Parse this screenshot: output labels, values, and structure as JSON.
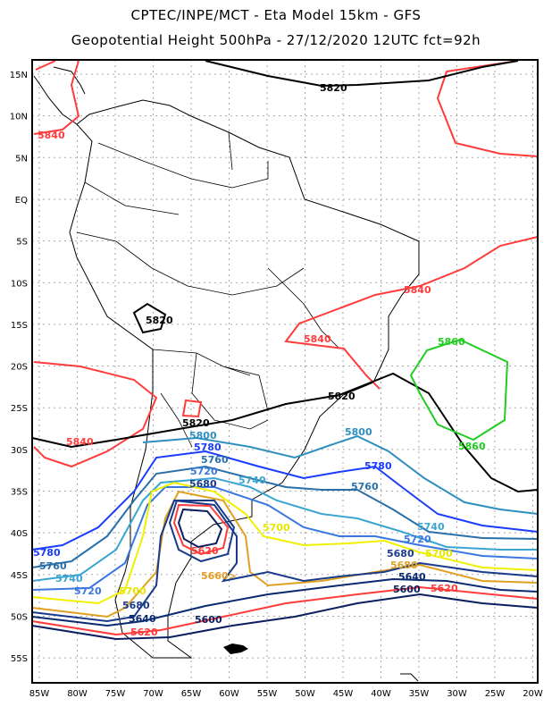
{
  "title_line1": "CPTEC/INPE/MCT -  Eta Model 15km - GFS",
  "title_line2": "Geopotential Height 500hPa - 27/12/2020 12UTC fct=92h",
  "lat_labels": [
    "15N",
    "10N",
    "5N",
    "EQ",
    "5S",
    "10S",
    "15S",
    "20S",
    "25S",
    "30S",
    "35S",
    "40S",
    "45S",
    "50S",
    "55S"
  ],
  "lon_labels": [
    "85W",
    "80W",
    "75W",
    "70W",
    "65W",
    "60W",
    "55W",
    "50W",
    "45W",
    "40W",
    "35W",
    "30W",
    "25W",
    "20W"
  ],
  "contour_colors": {
    "5860": "#22cc22",
    "5840": "#ff3b3b",
    "5820": "#000000",
    "5800": "#2f8fbf",
    "5780": "#1a3cff",
    "5760": "#2a6fa8",
    "5740": "#3aa5d0",
    "5720": "#3a78e0",
    "5700": "#f0f000",
    "5680": "#e0a020",
    "5660": "#1a3a8a",
    "5640": "#0a2a70",
    "5620": "#ff3b3b",
    "5600": "#0a1f60"
  },
  "contour_labels": [
    "5820",
    "5840",
    "5840",
    "5820",
    "5840",
    "5860",
    "5860",
    "5820",
    "5820",
    "5840",
    "5800",
    "5780",
    "5800",
    "5780",
    "5760",
    "5720",
    "5740",
    "5760",
    "5680",
    "5700",
    "5740",
    "5720",
    "5700",
    "5680",
    "5680",
    "5640",
    "5620",
    "5600",
    "5620",
    "5660>",
    "5780",
    "5760",
    "5740",
    "5720",
    "5700",
    "5680",
    "5640",
    "5620",
    "5600"
  ]
}
